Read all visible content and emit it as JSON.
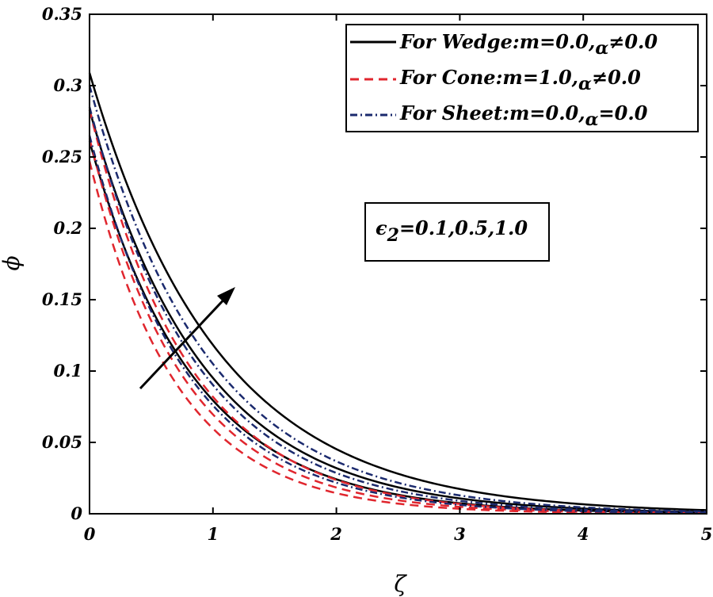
{
  "chart_data": {
    "type": "line",
    "xlabel": "ζ",
    "ylabel": "ϕ",
    "xlim": [
      0,
      5
    ],
    "ylim": [
      0,
      0.35
    ],
    "x_ticks": [
      "0",
      "1",
      "2",
      "3",
      "4",
      "5"
    ],
    "y_ticks": [
      "0",
      "0.05",
      "0.1",
      "0.15",
      "0.2",
      "0.25",
      "0.3",
      "0.35"
    ],
    "grid": false,
    "legend_position": "top-right",
    "legend": [
      {
        "style": "solid",
        "color": "#000000",
        "prefix": "For Wedge:m=0.0,",
        "sub": "α",
        "suffix": "≠0.0"
      },
      {
        "style": "dashed",
        "color": "#e0262e",
        "prefix": "For Cone:m=1.0,",
        "sub": "α",
        "suffix": "≠0.0"
      },
      {
        "style": "dashdot",
        "color": "#1b2a6e",
        "prefix": "For Sheet:m=0.0,",
        "sub": "α",
        "suffix": "=0.0"
      }
    ],
    "annotation": {
      "symbol": "ϵ",
      "subscript": "2",
      "text": "=0.1,0.5,1.0",
      "arrow": "increasing"
    },
    "families": [
      {
        "family": "Wedge",
        "style": "solid",
        "color": "#000000",
        "curves": [
          {
            "phi0": 0.261,
            "decay": 1.19
          },
          {
            "phi0": 0.283,
            "decay": 1.09
          },
          {
            "phi0": 0.309,
            "decay": 0.96
          }
        ]
      },
      {
        "family": "Cone",
        "style": "dashed",
        "color": "#e0262e",
        "curves": [
          {
            "phi0": 0.247,
            "decay": 1.42
          },
          {
            "phi0": 0.263,
            "decay": 1.33
          },
          {
            "phi0": 0.283,
            "decay": 1.24
          }
        ]
      },
      {
        "family": "Sheet",
        "style": "dashdot",
        "color": "#1b2a6e",
        "curves": [
          {
            "phi0": 0.265,
            "decay": 1.25
          },
          {
            "phi0": 0.285,
            "decay": 1.15
          },
          {
            "phi0": 0.3,
            "decay": 1.05
          }
        ]
      }
    ]
  }
}
